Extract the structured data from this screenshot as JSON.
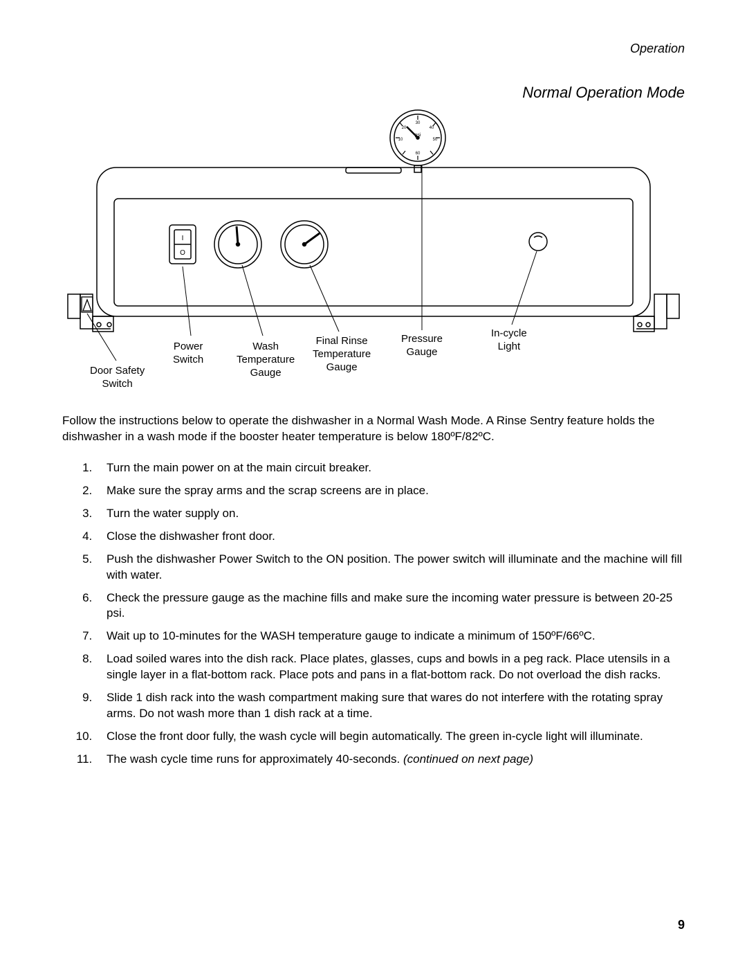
{
  "header": {
    "section": "Operation"
  },
  "title": "Normal Operation Mode",
  "diagram": {
    "callouts": {
      "door_safety_switch": "Door Safety\nSwitch",
      "power_switch": "Power\nSwitch",
      "wash_temp_gauge": "Wash\nTemperature\nGauge",
      "final_rinse_temp_gauge": "Final Rinse\nTemperature\nGauge",
      "pressure_gauge": "Pressure\nGauge",
      "in_cycle_light": "In-cycle\nLight"
    },
    "gauge_labels": {
      "psi": "psi",
      "t10a": "10",
      "t20": "20",
      "t30": "30",
      "t40": "40",
      "t50": "50",
      "t60": "60"
    },
    "switch_marks": {
      "top": "I",
      "bottom": "O"
    },
    "colors": {
      "stroke": "#000000",
      "bg": "#ffffff"
    }
  },
  "intro": "Follow the instructions below to operate the dishwasher in a Normal Wash Mode. A Rinse Sentry feature holds the dishwasher in a wash mode if the booster heater temperature is below 180ºF/82ºC.",
  "steps": [
    "Turn the main power on at the main circuit breaker.",
    "Make sure the spray arms and the scrap screens are in place.",
    "Turn the water supply on.",
    "Close the dishwasher front door.",
    "Push the dishwasher Power Switch to the ON position. The power switch will illuminate and the machine will fill with water.",
    "Check the pressure gauge as the machine fills and make sure the incoming water pressure is between 20-25 psi.",
    "Wait up to 10-minutes for the WASH temperature gauge to indicate a minimum of 150ºF/66ºC.",
    "Load soiled wares into the dish rack. Place plates, glasses, cups and bowls in a peg rack. Place utensils in a single layer in a flat-bottom rack. Place pots and pans in a flat-bottom rack. Do not overload the dish racks.",
    "Slide 1 dish rack into the wash compartment making sure that wares do not interfere with the rotating spray arms.  Do not wash more than 1 dish rack at a time.",
    "Close the front door fully, the wash cycle will begin automatically.  The green in-cycle light will illuminate."
  ],
  "step_11_prefix": "The wash cycle time runs for approximately 40-seconds. ",
  "step_11_italic": "(continued on next page)",
  "page_number": "9"
}
